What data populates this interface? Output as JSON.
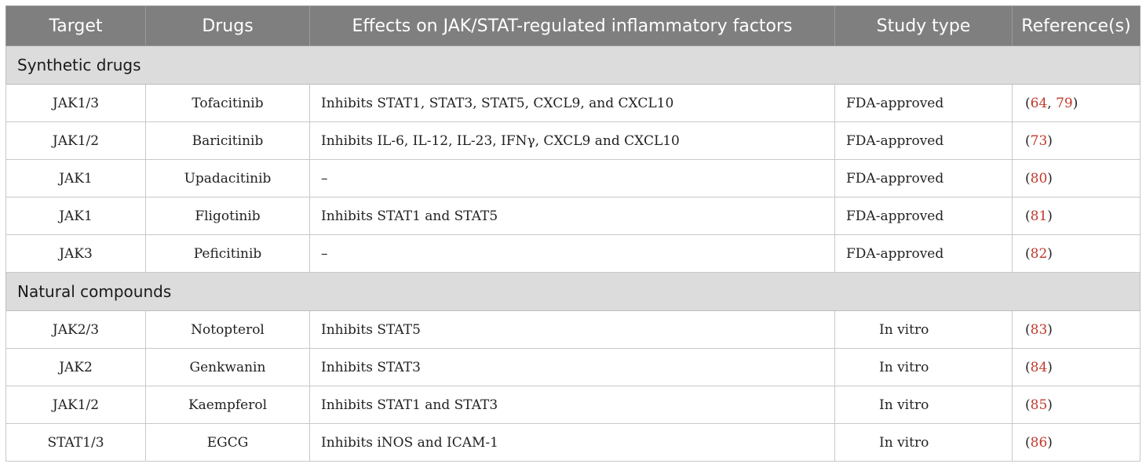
{
  "headers": [
    "Target",
    "Drugs",
    "Effects on JAK/STAT-regulated inflammatory factors",
    "Study type",
    "Reference(s)"
  ],
  "sections": [
    {
      "title": "Synthetic drugs",
      "rows": [
        {
          "target": "JAK1/3",
          "drug": "Tofacitinib",
          "effect": "Inhibits STAT1, STAT3, STAT5, CXCL9, and CXCL10",
          "study": "FDA-approved",
          "refs": [
            "64",
            "79"
          ]
        },
        {
          "target": "JAK1/2",
          "drug": "Baricitinib",
          "effect": "Inhibits IL-6, IL-12, IL-23, IFNγ, CXCL9 and CXCL10",
          "study": "FDA-approved",
          "refs": [
            "73"
          ]
        },
        {
          "target": "JAK1",
          "drug": "Upadacitinib",
          "effect": "–",
          "study": "FDA-approved",
          "refs": [
            "80"
          ]
        },
        {
          "target": "JAK1",
          "drug": "Fligotinib",
          "effect": "Inhibits STAT1 and STAT5",
          "study": "FDA-approved",
          "refs": [
            "81"
          ]
        },
        {
          "target": "JAK3",
          "drug": "Peficitinib",
          "effect": "–",
          "study": "FDA-approved",
          "refs": [
            "82"
          ]
        }
      ]
    },
    {
      "title": "Natural compounds",
      "rows": [
        {
          "target": "JAK2/3",
          "drug": "Notopterol",
          "effect": "Inhibits STAT5",
          "study": "In vitro",
          "refs": [
            "83"
          ]
        },
        {
          "target": "JAK2",
          "drug": "Genkwanin",
          "effect": "Inhibits STAT3",
          "study": "In vitro",
          "refs": [
            "84"
          ]
        },
        {
          "target": "JAK1/2",
          "drug": "Kaempferol",
          "effect": "Inhibits STAT1 and STAT3",
          "study": "In vitro",
          "refs": [
            "85"
          ]
        },
        {
          "target": "STAT1/3",
          "drug": "EGCG",
          "effect": "Inhibits iNOS and ICAM-1",
          "study": "In vitro",
          "refs": [
            "86"
          ]
        }
      ]
    }
  ],
  "colors": {
    "header_bg": "#7f7f7f",
    "section_bg": "#dcdcdc",
    "ref_link": "#c0392b"
  }
}
